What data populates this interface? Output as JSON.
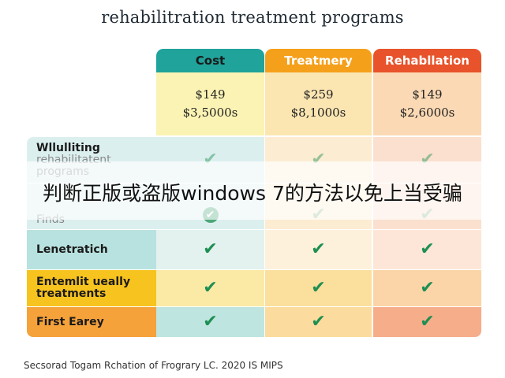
{
  "title": "rehabilitration treatment programs",
  "columns": [
    {
      "label": "Cost",
      "color": "#1fa39a",
      "text_color": "#1a1a1a"
    },
    {
      "label": "Treatmery",
      "color": "#f5a01b",
      "text_color": "#ffffff"
    },
    {
      "label": "Rehabllation",
      "color": "#e8532b",
      "text_color": "#ffffff"
    }
  ],
  "prices": [
    {
      "line1": "$149",
      "line2": "$3,5000s"
    },
    {
      "line1": "$259",
      "line2": "$8,1000s"
    },
    {
      "line1": "$149",
      "line2": "$2,6000s"
    }
  ],
  "rows": [
    {
      "label_line1": "Wllulliting",
      "label_line2": "rehabilitatent",
      "label_line3": "programs"
    },
    {
      "label_line1": "Finds"
    },
    {
      "label_line1": "Lenetratich"
    },
    {
      "label_line1": "Entemlit ueally",
      "label_line2": "treatments"
    },
    {
      "label_line1": "First Earey"
    }
  ],
  "check_glyph": "✔",
  "check_color": "#1e8f52",
  "overlay_text": "判断正版或盗版windows 7的方法以免上当受骗",
  "footer": "Secsorad Togam Rchation of Frograry LC. 2020 IS MIPS"
}
